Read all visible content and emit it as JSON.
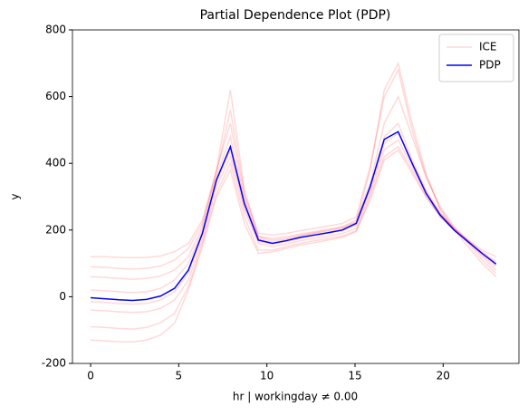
{
  "chart_data": {
    "type": "line",
    "title": "Partial Dependence Plot (PDP)",
    "xlabel": "hr | workingday ≠ 0.00",
    "ylabel": "y",
    "x": [
      0,
      0.79,
      1.59,
      2.38,
      3.17,
      3.97,
      4.76,
      5.55,
      6.34,
      7.14,
      7.93,
      8.72,
      9.52,
      10.31,
      11.1,
      11.9,
      12.69,
      13.48,
      14.28,
      15.07,
      15.86,
      16.66,
      17.45,
      18.24,
      19.03,
      19.83,
      20.62,
      21.41,
      22.21,
      23
    ],
    "xlim": [
      -1.03,
      24.3
    ],
    "xticks": [
      0,
      5,
      10,
      15,
      20
    ],
    "ylim": [
      -200,
      800
    ],
    "yticks": [
      -200,
      0,
      200,
      400,
      600,
      800
    ],
    "legend": "upper right",
    "series": [
      {
        "name": "ICE",
        "color": "#ff0000",
        "alpha": 0.15,
        "lines": [
          [
            120,
            120,
            118,
            117,
            118,
            122,
            135,
            160,
            230,
            380,
            520,
            300,
            180,
            175,
            180,
            188,
            195,
            202,
            210,
            230,
            340,
            520,
            600,
            480,
            360,
            270,
            210,
            170,
            140,
            120
          ],
          [
            -130,
            -132,
            -135,
            -135,
            -130,
            -115,
            -80,
            20,
            150,
            300,
            380,
            220,
            130,
            135,
            145,
            155,
            162,
            170,
            178,
            195,
            300,
            420,
            450,
            380,
            300,
            240,
            200,
            165,
            120,
            80
          ],
          [
            60,
            58,
            55,
            52,
            55,
            62,
            80,
            120,
            210,
            380,
            620,
            320,
            180,
            170,
            175,
            185,
            192,
            200,
            208,
            225,
            380,
            620,
            700,
            520,
            370,
            260,
            200,
            150,
            100,
            60
          ],
          [
            -40,
            -42,
            -45,
            -47,
            -45,
            -35,
            -10,
            50,
            170,
            330,
            420,
            260,
            160,
            150,
            158,
            168,
            175,
            182,
            190,
            205,
            310,
            440,
            470,
            390,
            310,
            250,
            205,
            170,
            135,
            105
          ],
          [
            20,
            18,
            15,
            12,
            15,
            25,
            50,
            100,
            200,
            360,
            480,
            290,
            175,
            165,
            172,
            182,
            190,
            197,
            205,
            222,
            330,
            480,
            520,
            410,
            320,
            250,
            205,
            165,
            125,
            90
          ],
          [
            -90,
            -92,
            -95,
            -97,
            -92,
            -78,
            -50,
            30,
            160,
            310,
            400,
            240,
            140,
            140,
            150,
            160,
            168,
            175,
            182,
            198,
            290,
            410,
            440,
            370,
            300,
            240,
            200,
            168,
            130,
            95
          ],
          [
            90,
            88,
            85,
            83,
            85,
            92,
            110,
            145,
            220,
            370,
            560,
            310,
            190,
            185,
            190,
            198,
            205,
            212,
            220,
            240,
            390,
            600,
            680,
            500,
            360,
            265,
            205,
            160,
            110,
            70
          ],
          [
            -15,
            -17,
            -20,
            -22,
            -20,
            -10,
            15,
            70,
            185,
            345,
            440,
            270,
            165,
            158,
            165,
            175,
            182,
            190,
            198,
            215,
            320,
            460,
            490,
            400,
            315,
            248,
            203,
            167,
            130,
            100
          ]
        ]
      },
      {
        "name": "PDP",
        "color": "#0000ff",
        "values": [
          -3,
          -6,
          -9,
          -11,
          -8,
          2,
          25,
          80,
          190,
          350,
          450,
          280,
          170,
          160,
          168,
          178,
          185,
          192,
          200,
          220,
          330,
          472,
          495,
          400,
          310,
          245,
          200,
          165,
          130,
          98
        ]
      }
    ]
  }
}
